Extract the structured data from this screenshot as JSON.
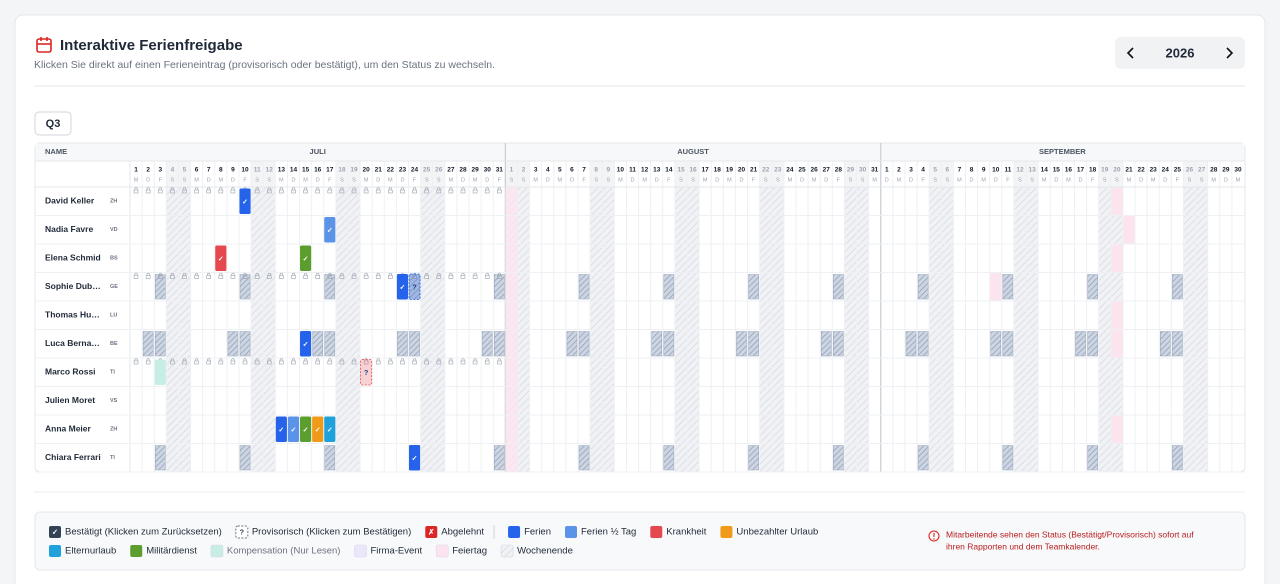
{
  "header": {
    "title": "Interaktive Ferienfreigabe",
    "subtitle": "Klicken Sie direkt auf einen Ferieneintrag (provisorisch oder bestätigt), um den Status zu wechseln.",
    "year": "2026"
  },
  "tab": "Q3",
  "name_header": "NAME",
  "months": [
    {
      "name": "JULI",
      "start_weekday": 2,
      "days": [
        1,
        2,
        3,
        4,
        5,
        6,
        7,
        8,
        9,
        10,
        11,
        12,
        13,
        14,
        15,
        16,
        17,
        18,
        19,
        20,
        21,
        22,
        23,
        24,
        25,
        26,
        27,
        28,
        29,
        30,
        31
      ],
      "weekdays": [
        "M",
        "D",
        "F",
        "S",
        "S",
        "M",
        "D",
        "M",
        "D",
        "F",
        "S",
        "S",
        "M",
        "D",
        "M",
        "D",
        "F",
        "S",
        "S",
        "M",
        "D",
        "M",
        "D",
        "F",
        "S",
        "S",
        "M",
        "D",
        "M",
        "D",
        "F"
      ]
    },
    {
      "name": "AUGUST",
      "start_weekday": 5,
      "days": [
        1,
        2,
        3,
        4,
        5,
        6,
        7,
        8,
        9,
        10,
        11,
        12,
        13,
        14,
        15,
        16,
        17,
        18,
        19,
        20,
        21,
        22,
        23,
        24,
        25,
        26,
        27,
        28,
        29,
        30,
        31
      ],
      "weekdays": [
        "S",
        "S",
        "M",
        "D",
        "M",
        "D",
        "F",
        "S",
        "S",
        "M",
        "D",
        "M",
        "D",
        "F",
        "S",
        "S",
        "M",
        "D",
        "M",
        "D",
        "F",
        "S",
        "S",
        "M",
        "D",
        "M",
        "D",
        "F",
        "S",
        "S",
        "M"
      ]
    },
    {
      "name": "SEPTEMBER",
      "start_weekday": 1,
      "days": [
        1,
        2,
        3,
        4,
        5,
        6,
        7,
        8,
        9,
        10,
        11,
        12,
        13,
        14,
        15,
        16,
        17,
        18,
        19,
        20,
        21,
        22,
        23,
        24,
        25,
        26,
        27,
        28,
        29,
        30
      ],
      "weekdays": [
        "D",
        "M",
        "D",
        "F",
        "S",
        "S",
        "M",
        "D",
        "M",
        "D",
        "F",
        "S",
        "S",
        "M",
        "D",
        "M",
        "D",
        "F",
        "S",
        "S",
        "M",
        "D",
        "M",
        "D",
        "F",
        "S",
        "S",
        "M",
        "D",
        "M"
      ]
    }
  ],
  "holidays": [
    {
      "month": 1,
      "day": 1
    }
  ],
  "employees": [
    {
      "name": "David Keller",
      "canton": "ZH",
      "locked": true,
      "off_weekdays": [],
      "holidays": [
        {
          "month": 2,
          "day": 20
        }
      ],
      "entries": [
        {
          "month": 0,
          "day": 10,
          "kind": 0,
          "status": "✓"
        }
      ]
    },
    {
      "name": "Nadia Favre",
      "canton": "VD",
      "locked": false,
      "off_weekdays": [],
      "holidays": [
        {
          "month": 2,
          "day": 21
        }
      ],
      "entries": [
        {
          "month": 0,
          "day": 17,
          "kind": 1,
          "status": "✓"
        }
      ]
    },
    {
      "name": "Elena Schmid",
      "canton": "BS",
      "locked": false,
      "off_weekdays": [],
      "holidays": [
        {
          "month": 2,
          "day": 20
        }
      ],
      "entries": [
        {
          "month": 0,
          "day": 8,
          "kind": 2,
          "status": "✓"
        },
        {
          "month": 0,
          "day": 15,
          "kind": 5,
          "status": "✓"
        }
      ]
    },
    {
      "name": "Sophie Dub…",
      "canton": "GE",
      "locked": true,
      "off_weekdays": [
        4
      ],
      "holidays": [
        {
          "month": 2,
          "day": 10
        }
      ],
      "entries": [
        {
          "month": 0,
          "day": 23,
          "kind": 0,
          "status": "✓"
        },
        {
          "month": 0,
          "day": 24,
          "kind": 0,
          "status": "?"
        }
      ]
    },
    {
      "name": "Thomas Hu…",
      "canton": "LU",
      "locked": false,
      "off_weekdays": [],
      "holidays": [
        {
          "month": 2,
          "day": 20
        }
      ],
      "entries": []
    },
    {
      "name": "Luca Berna…",
      "canton": "BE",
      "locked": false,
      "off_weekdays": [
        3,
        4
      ],
      "holidays": [
        {
          "month": 2,
          "day": 20
        }
      ],
      "entries": [
        {
          "month": 0,
          "day": 15,
          "kind": 0,
          "status": "✓"
        }
      ]
    },
    {
      "name": "Marco Rossi",
      "canton": "TI",
      "locked": true,
      "off_weekdays": [],
      "holidays": [],
      "entries": [
        {
          "month": 0,
          "day": 3,
          "kind": 6,
          "status": ""
        },
        {
          "month": 0,
          "day": 20,
          "kind": 2,
          "status": "?"
        }
      ]
    },
    {
      "name": "Julien Moret",
      "canton": "VS",
      "locked": false,
      "off_weekdays": [],
      "holidays": [],
      "entries": []
    },
    {
      "name": "Anna Meier",
      "canton": "ZH",
      "locked": false,
      "off_weekdays": [],
      "holidays": [
        {
          "month": 2,
          "day": 20
        }
      ],
      "entries": [
        {
          "month": 0,
          "day": 13,
          "kind": 0,
          "status": "✓"
        },
        {
          "month": 0,
          "day": 14,
          "kind": 1,
          "status": "✓"
        },
        {
          "month": 0,
          "day": 15,
          "kind": 5,
          "status": "✓"
        },
        {
          "month": 0,
          "day": 16,
          "kind": 3,
          "status": "✓"
        },
        {
          "month": 0,
          "day": 17,
          "kind": 4,
          "status": "✓"
        }
      ]
    },
    {
      "name": "Chiara Ferrari",
      "canton": "TI",
      "locked": false,
      "off_weekdays": [
        4
      ],
      "holidays": [],
      "entries": [
        {
          "month": 0,
          "day": 24,
          "kind": 0,
          "status": "✓"
        }
      ]
    }
  ],
  "legend": {
    "statuses": [
      {
        "symbol": "✓",
        "label": "Bestätigt (Klicken zum Zurücksetzen)",
        "color": "#334155"
      },
      {
        "symbol": "?",
        "label": "Provisorisch (Klicken zum Bestätigen)",
        "color": "#ffffff"
      },
      {
        "symbol": "✗",
        "label": "Abgelehnt",
        "color": "#dc2626"
      }
    ],
    "types": [
      {
        "name": "Ferien",
        "color": "#2563eb"
      },
      {
        "name": "Ferien ½ Tag",
        "color": "#5b93e8"
      },
      {
        "name": "Krankheit",
        "color": "#e5484d"
      },
      {
        "name": "Unbezahlter Urlaub",
        "color": "#f09a1a"
      },
      {
        "name": "Elternurlaub",
        "color": "#1fa2dc"
      },
      {
        "name": "Militärdienst",
        "color": "#5c9e2e"
      },
      {
        "name": "Kompensation (Nur Lesen)",
        "color": "#c6eee4"
      },
      {
        "name": "Firma-Event",
        "color": "#ebe7fb"
      },
      {
        "name": "Feiertag",
        "color": "#fce4ef"
      },
      {
        "name": "Wochenende",
        "color": "#e5e7eb",
        "hatched": true
      }
    ],
    "note": [
      "Mitarbeitende sehen den Status (Bestätigt/Provisorisch) sofort auf",
      "ihren Rapporten und dem Teamkalender."
    ]
  }
}
